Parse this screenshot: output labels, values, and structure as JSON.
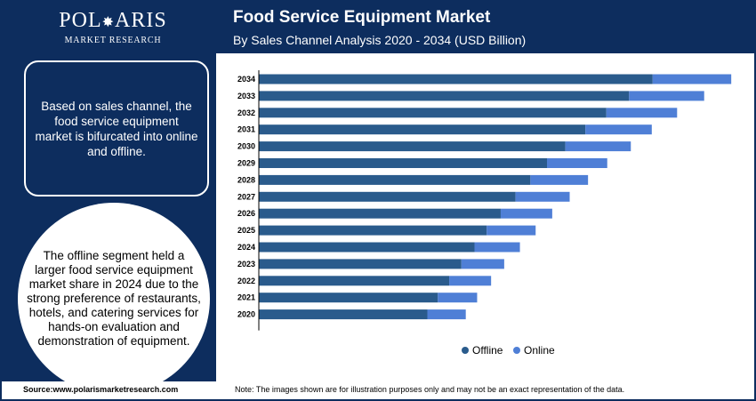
{
  "brand": {
    "name_left": "POL",
    "name_star": "✸",
    "name_right": "ARIS",
    "tagline": "MARKET RESEARCH"
  },
  "header": {
    "title": "Food Service Equipment Market",
    "subtitle": "By Sales Channel Analysis 2020 - 2034 (USD Billion)"
  },
  "sidebar": {
    "description": "Based on sales channel, the food service equipment market is bifurcated into online and offline.",
    "highlight": "The offline segment held a larger food service equipment market share in 2024 due to the strong preference of restaurants, hotels, and catering services for hands-on evaluation and demonstration of equipment."
  },
  "footer": {
    "source": "Source:www.polarismarketresearch.com",
    "note": "Note: The images shown are for illustration purposes only and may not be an exact representation of the data."
  },
  "colors": {
    "offline": "#2a5b8c",
    "online": "#4f7fd6",
    "navy": "#0d2d5e"
  },
  "chart_data": {
    "type": "bar",
    "orientation": "horizontal",
    "stacked": true,
    "categories": [
      "2034",
      "2033",
      "2032",
      "2031",
      "2030",
      "2029",
      "2028",
      "2027",
      "2026",
      "2025",
      "2024",
      "2023",
      "2022",
      "2021",
      "2020"
    ],
    "series": [
      {
        "name": "Offline",
        "values": [
          45.1,
          42.4,
          39.8,
          37.4,
          35.1,
          33.0,
          31.1,
          29.4,
          27.7,
          26.1,
          24.7,
          23.2,
          21.8,
          20.5,
          19.3
        ]
      },
      {
        "name": "Online",
        "values": [
          9.0,
          8.6,
          8.1,
          7.6,
          7.5,
          6.9,
          6.6,
          6.2,
          5.9,
          5.6,
          5.2,
          4.9,
          4.8,
          4.5,
          4.4
        ]
      }
    ],
    "xlim": [
      0,
      55
    ],
    "grid": false,
    "legend": "bottom-center"
  }
}
